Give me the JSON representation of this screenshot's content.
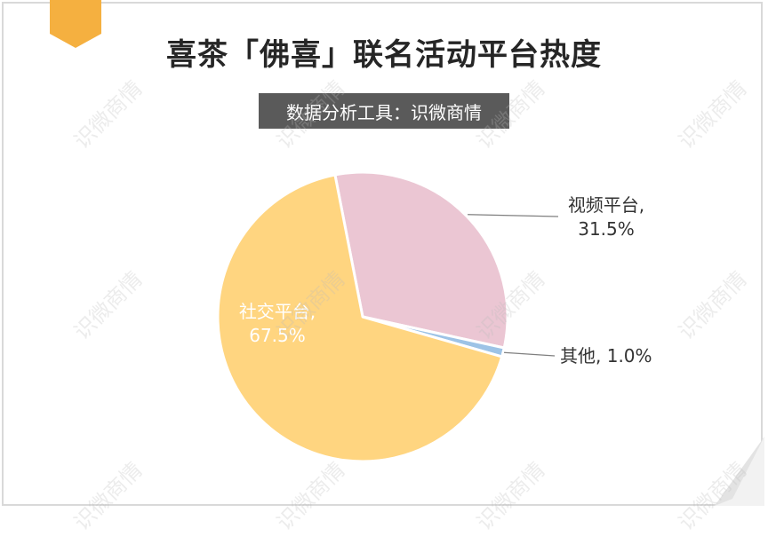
{
  "title": "喜茶「佛喜」联名活动平台热度",
  "subtitle": "数据分析工具：识微商情",
  "watermark": "识微商情",
  "chart_data": {
    "type": "pie",
    "slices": [
      {
        "name": "视频平台",
        "value": 31.5,
        "label": "视频平台,",
        "pct_label": "31.5%",
        "color": "#ebc6d3"
      },
      {
        "name": "其他",
        "value": 1.0,
        "label": "其他, 1.0%",
        "color": "#9dc3e6"
      },
      {
        "name": "社交平台",
        "value": 67.5,
        "label": "社交平台,",
        "pct_label": "67.5%",
        "color": "#ffd580"
      }
    ]
  },
  "colors": {
    "corner_tab": "#f5b040",
    "label_text": "#333333",
    "leader_line": "#7f7f7f"
  }
}
